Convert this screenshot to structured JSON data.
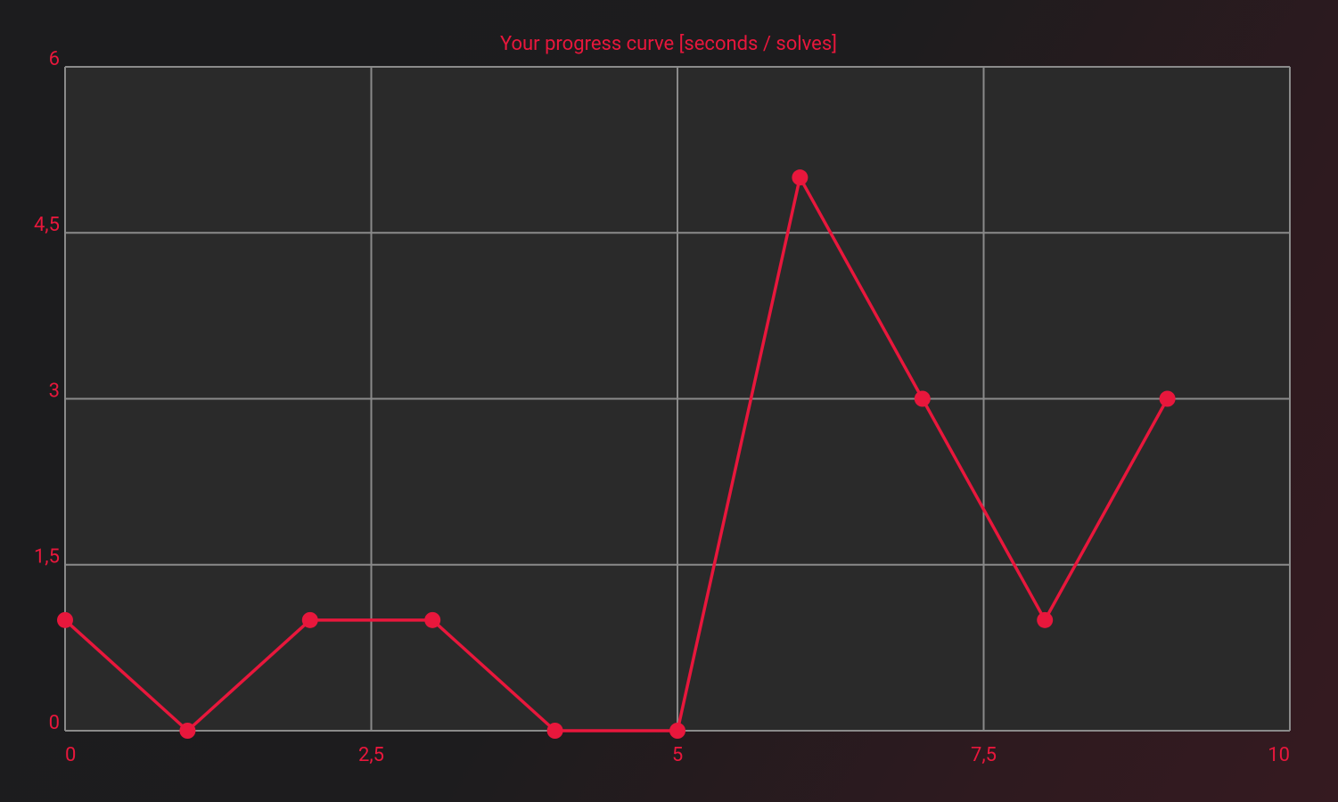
{
  "chart_data": {
    "type": "line",
    "title": "Your progress curve [seconds / solves]",
    "x": [
      0,
      1,
      2,
      3,
      4,
      5,
      6,
      7,
      8,
      9
    ],
    "series": [
      {
        "name": "solves",
        "color": "#e8173c",
        "values": [
          1,
          0,
          1,
          1,
          0,
          0,
          5,
          3,
          1,
          3
        ]
      }
    ],
    "xlim": [
      0,
      10
    ],
    "xticks": [
      0,
      {
        "value": 2.5,
        "label": "2,5"
      },
      5,
      {
        "value": 7.5,
        "label": "7,5"
      },
      10
    ],
    "ylim": [
      0,
      6
    ],
    "yticks": [
      0,
      {
        "value": 1.5,
        "label": "1,5"
      },
      3,
      {
        "value": 4.5,
        "label": "4,5"
      },
      6
    ],
    "grid": true
  }
}
